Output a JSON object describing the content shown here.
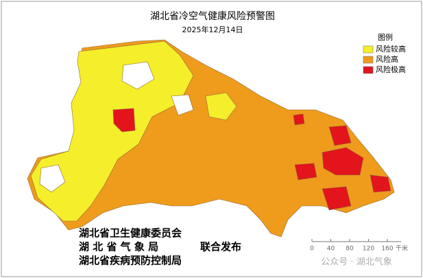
{
  "title": "湖北省冷空气健康风险预警图",
  "date": "2025年12月14日",
  "legend": {
    "title": "图例",
    "items": [
      {
        "label": "风险较高",
        "color": "#f5ee2a"
      },
      {
        "label": "风险高",
        "color": "#ef9b1c"
      },
      {
        "label": "风险极高",
        "color": "#e3141c"
      }
    ]
  },
  "issuers": [
    "湖北省卫生健康委员会",
    "湖 北 省 气 象 局",
    "湖北省疾病预防控制局"
  ],
  "joint": "联合发布",
  "scale": {
    "ticks": [
      "0",
      "40",
      "80",
      "120",
      "160"
    ],
    "unit": "千米"
  },
  "watermark": "公众号 · 湖北气象"
}
